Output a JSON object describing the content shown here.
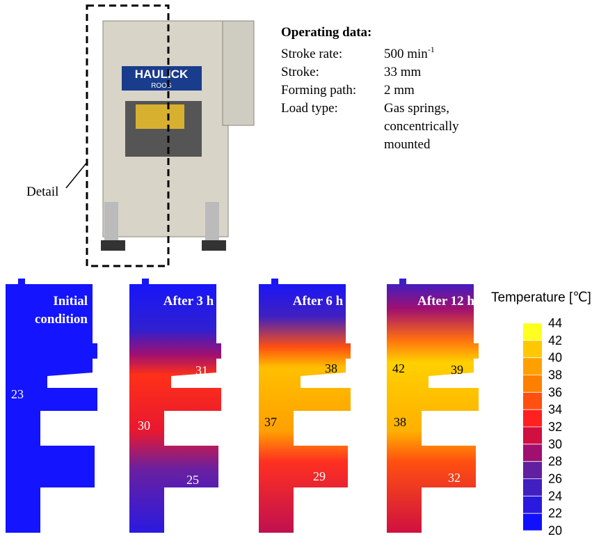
{
  "operating_data": {
    "title": "Operating data:",
    "rows": [
      {
        "label": "Stroke rate:",
        "value": [
          "500 min"
        ],
        "sup": "-1"
      },
      {
        "label": "Stroke:",
        "value": [
          "33 mm"
        ]
      },
      {
        "label": "Forming path:",
        "value": [
          "2 mm"
        ]
      },
      {
        "label": "Load type:",
        "value": [
          "Gas springs,",
          "concentrically",
          "mounted"
        ]
      }
    ]
  },
  "detail_label": "Detail",
  "panels": [
    {
      "title": [
        "Initial",
        "condition"
      ],
      "labels": [
        "23"
      ]
    },
    {
      "title": [
        "After 3 h"
      ],
      "labels": [
        "31",
        "30",
        "25"
      ]
    },
    {
      "title": [
        "After 6 h"
      ],
      "labels": [
        "38",
        "37",
        "29"
      ]
    },
    {
      "title": [
        "After 12 h"
      ],
      "labels": [
        "42",
        "39",
        "38",
        "32"
      ]
    }
  ],
  "colorbar": {
    "title": "Temperature [℃]",
    "ticks": [
      44,
      42,
      40,
      38,
      36,
      34,
      32,
      30,
      28,
      26,
      24,
      22,
      20
    ]
  }
}
